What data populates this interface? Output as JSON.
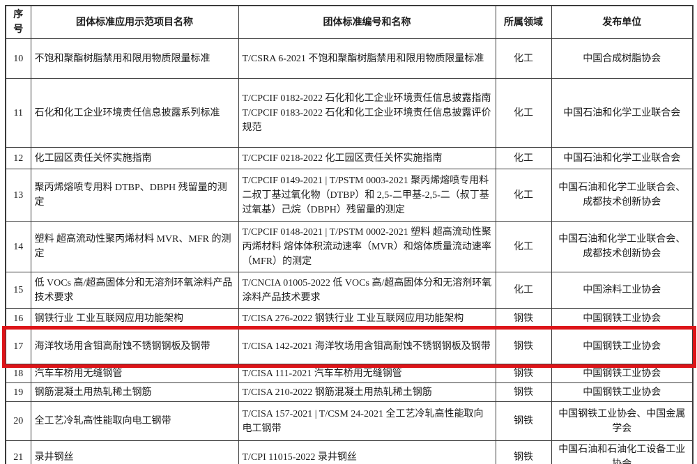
{
  "table": {
    "highlight_color": "#dd1418",
    "border_color": "#3b3b3b",
    "columns": [
      {
        "label": "序号"
      },
      {
        "label": "团体标准应用示范项目名称"
      },
      {
        "label": "团体标准编号和名称"
      },
      {
        "label": "所属领域"
      },
      {
        "label": "发布单位"
      }
    ],
    "rows": [
      {
        "no": "10",
        "project": "不饱和聚酯树脂禁用和限用物质限量标准",
        "standard": "T/CSRA 6-2021 不饱和聚酯树脂禁用和限用物质限量标准",
        "field": "化工",
        "publisher": "中国合成树脂协会",
        "highlighted": false
      },
      {
        "no": "11",
        "project": "石化和化工企业环境责任信息披露系列标准",
        "standard": "T/CPCIF 0182-2022 石化和化工企业环境责任信息披露指南\nT/CPCIF 0183-2022 石化和化工企业环境责任信息披露评价规范",
        "field": "化工",
        "publisher": "中国石油和化学工业联合会",
        "highlighted": false
      },
      {
        "no": "12",
        "project": "化工园区责任关怀实施指南",
        "standard": "T/CPCIF 0218-2022 化工园区责任关怀实施指南",
        "field": "化工",
        "publisher": "中国石油和化学工业联合会",
        "highlighted": false
      },
      {
        "no": "13",
        "project": "聚丙烯熔喷专用料 DTBP、DBPH 残留量的测定",
        "standard": "T/CPCIF 0149-2021 | T/PSTM 0003-2021 聚丙烯熔喷专用料 二叔丁基过氧化物（DTBP）和 2,5-二甲基-2,5-二（叔丁基过氧基）己烷（DBPH）残留量的测定",
        "field": "化工",
        "publisher": "中国石油和化学工业联合会、成都技术创新协会",
        "highlighted": false
      },
      {
        "no": "14",
        "project": "塑料 超高流动性聚丙烯材料 MVR、MFR 的测定",
        "standard": "T/CPCIF 0148-2021 | T/PSTM 0002-2021 塑料 超高流动性聚丙烯材料 熔体体积流动速率（MVR）和熔体质量流动速率（MFR）的测定",
        "field": "化工",
        "publisher": "中国石油和化学工业联合会、成都技术创新协会",
        "highlighted": false
      },
      {
        "no": "15",
        "project": "低 VOCs 高/超高固体分和无溶剂环氧涂料产品技术要求",
        "standard": "T/CNCIA 01005-2022 低 VOCs 高/超高固体分和无溶剂环氧涂料产品技术要求",
        "field": "化工",
        "publisher": "中国涂料工业协会",
        "highlighted": false
      },
      {
        "no": "16",
        "project": "钢铁行业 工业互联网应用功能架构",
        "standard": "T/CISA 276-2022 钢铁行业 工业互联网应用功能架构",
        "field": "钢铁",
        "publisher": "中国钢铁工业协会",
        "highlighted": false
      },
      {
        "no": "17",
        "project": "海洋牧场用含钼高耐蚀不锈钢钢板及钢带",
        "standard": "T/CISA 142-2021 海洋牧场用含钼高耐蚀不锈钢钢板及钢带",
        "field": "钢铁",
        "publisher": "中国钢铁工业协会",
        "highlighted": true
      },
      {
        "no": "18",
        "project": "汽车车桥用无缝钢管",
        "standard": "T/CISA 111-2021 汽车车桥用无缝钢管",
        "field": "钢铁",
        "publisher": "中国钢铁工业协会",
        "highlighted": false
      },
      {
        "no": "19",
        "project": "钢筋混凝土用热轧稀土钢筋",
        "standard": "T/CISA 210-2022 钢筋混凝土用热轧稀土钢筋",
        "field": "钢铁",
        "publisher": "中国钢铁工业协会",
        "highlighted": false
      },
      {
        "no": "20",
        "project": "全工艺冷轧高性能取向电工钢带",
        "standard": "T/CISA 157-2021 | T/CSM 24-2021 全工艺冷轧高性能取向电工钢带",
        "field": "钢铁",
        "publisher": "中国钢铁工业协会、中国金属学会",
        "highlighted": false
      },
      {
        "no": "21",
        "project": "录井钢丝",
        "standard": "T/CPI 11015-2022 录井钢丝",
        "field": "钢铁",
        "publisher": "中国石油和石油化工设备工业协会",
        "highlighted": false
      }
    ]
  }
}
